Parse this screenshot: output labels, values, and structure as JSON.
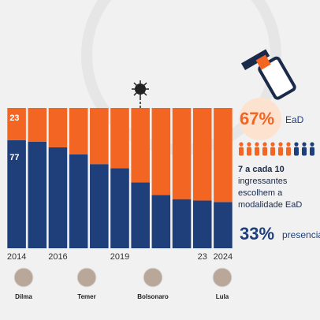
{
  "chart_data": {
    "type": "stacked_bar",
    "categories": [
      "2014",
      null,
      "2016",
      null,
      null,
      "2019",
      null,
      null,
      null,
      "23",
      "2024"
    ],
    "series": [
      {
        "name": "presencial",
        "color": "#1f3f7a",
        "values": [
          77,
          76,
          72,
          67,
          60,
          57,
          47,
          38,
          35,
          34,
          33
        ],
        "value_labels": [
          "77",
          null,
          null,
          null,
          null,
          null,
          null,
          null,
          null,
          null,
          null
        ]
      },
      {
        "name": "EaD",
        "color": "#f26522",
        "values": [
          23,
          24,
          28,
          33,
          40,
          43,
          53,
          62,
          65,
          66,
          67
        ],
        "value_labels": [
          "23",
          null,
          null,
          null,
          null,
          null,
          null,
          null,
          null,
          null,
          null
        ]
      }
    ],
    "ylim": [
      0,
      100
    ]
  },
  "presidents": [
    "Dilma",
    "Temer",
    "Bolsonaro",
    "Lula"
  ],
  "callout": {
    "ead_pct": "67%",
    "statement": [
      "7 a cada 10",
      "ingressantes",
      "escolhem a",
      "modalidade EaD"
    ],
    "presencial_pct": "33%"
  }
}
